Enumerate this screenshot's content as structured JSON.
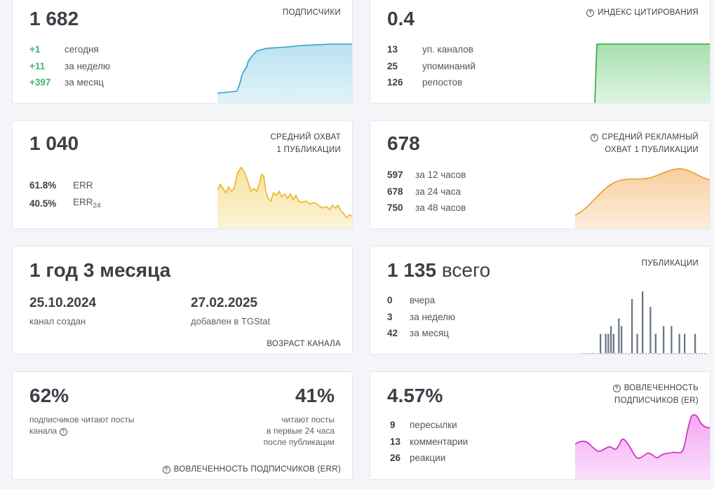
{
  "cards": {
    "subscribers": {
      "value": "1 682",
      "label": "ПОДПИСЧИКИ",
      "stats": [
        {
          "n": "+1",
          "t": "сегодня"
        },
        {
          "n": "+11",
          "t": "за неделю"
        },
        {
          "n": "+397",
          "t": "за месяц"
        }
      ],
      "color": "#7fcbe3"
    },
    "citation": {
      "value": "0.4",
      "label": "ИНДЕКС ЦИТИРОВАНИЯ",
      "stats": [
        {
          "n": "13",
          "t": "уп. каналов"
        },
        {
          "n": "25",
          "t": "упоминаний"
        },
        {
          "n": "126",
          "t": "репостов"
        }
      ],
      "color": "#3cb34a"
    },
    "reach": {
      "value": "1 040",
      "label_line1": "СРЕДНИЙ ОХВАТ",
      "label_line2": "1 ПУБЛИКАЦИИ",
      "stats": [
        {
          "n": "61.8%",
          "t": "ERR"
        },
        {
          "n": "40.5%",
          "t": "ERR",
          "sub": "24"
        }
      ],
      "color": "#f0c330"
    },
    "ad_reach": {
      "value": "678",
      "label_line1": "СРЕДНИЙ РЕКЛАМНЫЙ",
      "label_line2": "ОХВАТ 1 ПУБЛИКАЦИИ",
      "stats": [
        {
          "n": "597",
          "t": "за 12 часов"
        },
        {
          "n": "678",
          "t": "за 24 часа"
        },
        {
          "n": "750",
          "t": "за 48 часов"
        }
      ],
      "color": "#f0a040"
    },
    "age": {
      "value": "1 год 3 месяца",
      "created_date": "25.10.2024",
      "created_label": "канал создан",
      "added_date": "27.02.2025",
      "added_label": "добавлен в TGStat",
      "label": "ВОЗРАСТ КАНАЛА"
    },
    "posts": {
      "value": "1 135",
      "value_suffix": "всего",
      "label": "ПУБЛИКАЦИИ",
      "stats": [
        {
          "n": "0",
          "t": "вчера"
        },
        {
          "n": "3",
          "t": "за неделю"
        },
        {
          "n": "42",
          "t": "за месяц"
        }
      ],
      "color": "#6a7585",
      "bars": [
        0,
        0,
        0,
        0,
        0,
        0,
        0,
        5,
        0,
        5,
        5,
        7,
        5,
        0,
        9,
        7,
        0,
        0,
        0,
        14,
        0,
        5,
        0,
        16,
        0,
        0,
        12,
        0,
        5,
        0,
        0,
        7,
        0,
        0,
        7,
        0,
        0,
        5,
        0,
        5,
        0,
        0,
        0,
        5,
        0,
        0,
        0,
        0
      ]
    },
    "err": {
      "value_left": "62%",
      "text_left_line1": "подписчиков читают посты",
      "text_left_line2": "канала",
      "value_right": "41%",
      "text_right_line1": "читают посты",
      "text_right_line2": "в первые 24 часа",
      "text_right_line3": "после публикации",
      "label": "ВОВЛЕЧЕННОСТЬ ПОДПИСЧИКОВ (ERR)"
    },
    "er": {
      "value": "4.57%",
      "label_line1": "ВОВЛЕЧЕННОСТЬ",
      "label_line2": "ПОДПИСЧИКОВ (ER)",
      "stats": [
        {
          "n": "9",
          "t": "пересылки"
        },
        {
          "n": "13",
          "t": "комментарии"
        },
        {
          "n": "26",
          "t": "реакции"
        }
      ],
      "color": "#d640d6"
    }
  }
}
